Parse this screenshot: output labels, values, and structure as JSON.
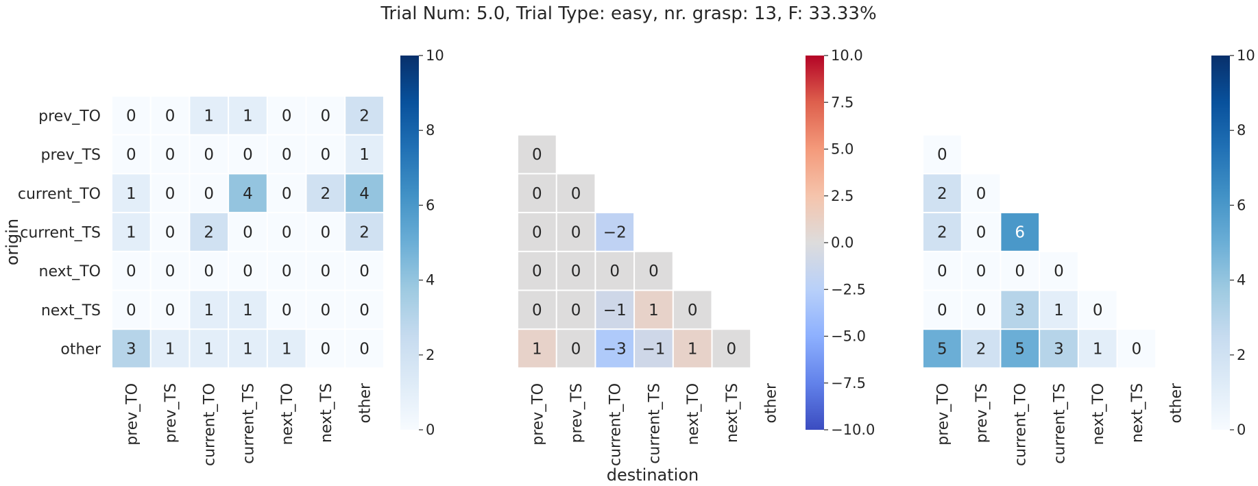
{
  "title": "Trial Num: 5.0, Trial Type: easy, nr. grasp: 13, F: 33.33%",
  "xlabel": "destination",
  "ylabel": "origin",
  "chart_data": [
    {
      "type": "heatmap",
      "title": "",
      "xlabel": "",
      "ylabel": "origin",
      "x_categories": [
        "prev_TO",
        "prev_TS",
        "current_TO",
        "current_TS",
        "next_TO",
        "next_TS",
        "other"
      ],
      "y_categories": [
        "prev_TO",
        "prev_TS",
        "current_TO",
        "current_TS",
        "next_TO",
        "next_TS",
        "other"
      ],
      "colormap": "Blues",
      "vmin": 0,
      "vmax": 10,
      "colorbar_ticks": [
        "0",
        "2",
        "4",
        "6",
        "8",
        "10"
      ],
      "mask": "none",
      "values": [
        [
          0,
          0,
          1,
          1,
          0,
          0,
          2
        ],
        [
          0,
          0,
          0,
          0,
          0,
          0,
          1
        ],
        [
          1,
          0,
          0,
          4,
          0,
          2,
          4
        ],
        [
          1,
          0,
          2,
          0,
          0,
          0,
          2
        ],
        [
          0,
          0,
          0,
          0,
          0,
          0,
          0
        ],
        [
          0,
          0,
          1,
          1,
          0,
          0,
          0
        ],
        [
          3,
          1,
          1,
          1,
          1,
          0,
          0
        ]
      ]
    },
    {
      "type": "heatmap",
      "title": "",
      "xlabel": "destination",
      "ylabel": "",
      "x_categories": [
        "prev_TO",
        "prev_TS",
        "current_TO",
        "current_TS",
        "next_TO",
        "next_TS",
        "other"
      ],
      "y_categories": [],
      "colormap": "coolwarm",
      "vmin": -10,
      "vmax": 10,
      "colorbar_ticks": [
        "10.0",
        "7.5",
        "5.0",
        "2.5",
        "0.0",
        "−2.5",
        "−5.0",
        "−7.5",
        "−10.0"
      ],
      "mask": "lower-triangle",
      "values": [
        [
          0
        ],
        [
          0,
          0
        ],
        [
          0,
          0,
          -2
        ],
        [
          0,
          0,
          0,
          0
        ],
        [
          0,
          0,
          -1,
          1,
          0
        ],
        [
          1,
          0,
          -3,
          -1,
          1,
          0
        ]
      ]
    },
    {
      "type": "heatmap",
      "title": "",
      "xlabel": "",
      "ylabel": "",
      "x_categories": [
        "prev_TO",
        "prev_TS",
        "current_TO",
        "current_TS",
        "next_TO",
        "next_TS",
        "other"
      ],
      "y_categories": [],
      "colormap": "Blues",
      "vmin": 0,
      "vmax": 10,
      "colorbar_ticks": [
        "0",
        "2",
        "4",
        "6",
        "8",
        "10"
      ],
      "mask": "lower-triangle",
      "values": [
        [
          0
        ],
        [
          2,
          0
        ],
        [
          2,
          0,
          6
        ],
        [
          0,
          0,
          0,
          0
        ],
        [
          0,
          0,
          3,
          1,
          0
        ],
        [
          5,
          2,
          5,
          3,
          1,
          0
        ]
      ]
    }
  ]
}
